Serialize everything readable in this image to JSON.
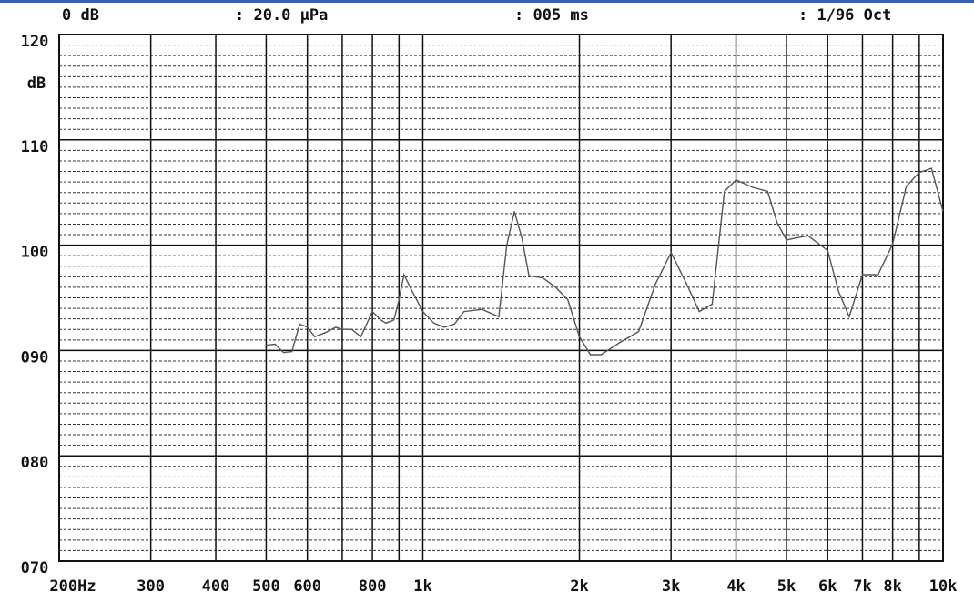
{
  "chart_data": {
    "type": "line",
    "header": [
      "0 dB",
      ": 20.0 μPa",
      ": 005 ms",
      ": 1/96  Oct"
    ],
    "y_label": "dB",
    "x_log": true,
    "grid": true,
    "minor_grid_step": 1,
    "xlim": [
      200,
      10000
    ],
    "ylim": [
      70,
      120
    ],
    "xticks": [
      {
        "value": 200,
        "label": "200Hz"
      },
      300,
      400,
      500,
      600,
      {
        "value": 700,
        "label": null
      },
      800,
      {
        "value": 900,
        "label": null
      },
      {
        "value": 1000,
        "label": "1k"
      },
      {
        "value": 2000,
        "label": "2k"
      },
      {
        "value": 3000,
        "label": "3k"
      },
      {
        "value": 4000,
        "label": "4k"
      },
      {
        "value": 5000,
        "label": "5k"
      },
      {
        "value": 6000,
        "label": "6k"
      },
      {
        "value": 7000,
        "label": "7k"
      },
      {
        "value": 8000,
        "label": "8k"
      },
      {
        "value": 9000,
        "label": null
      },
      {
        "value": 10000,
        "label": "10k"
      }
    ],
    "yticks": [
      {
        "value": 70,
        "label": "070"
      },
      {
        "value": 80,
        "label": "080"
      },
      {
        "value": 90,
        "label": "090"
      },
      100,
      110,
      120
    ],
    "x": [
      500,
      520,
      540,
      560,
      580,
      600,
      620,
      650,
      680,
      700,
      730,
      760,
      800,
      830,
      850,
      880,
      900,
      920,
      950,
      1000,
      1050,
      1100,
      1150,
      1200,
      1300,
      1400,
      1450,
      1500,
      1550,
      1600,
      1700,
      1800,
      1900,
      2000,
      2100,
      2200,
      2400,
      2600,
      2800,
      3000,
      3200,
      3400,
      3600,
      3800,
      4000,
      4300,
      4600,
      4800,
      5000,
      5500,
      6000,
      6300,
      6600,
      7000,
      7500,
      8000,
      8500,
      9000,
      9500,
      10000
    ],
    "series": [
      {
        "color": "#555555",
        "values": [
          90.5,
          90.6,
          89.8,
          89.9,
          92.5,
          92.2,
          91.3,
          91.7,
          92.2,
          92.0,
          92.0,
          91.3,
          93.7,
          92.9,
          92.6,
          92.9,
          94.8,
          97.2,
          95.8,
          93.7,
          92.6,
          92.2,
          92.5,
          93.7,
          93.9,
          93.2,
          100.0,
          103.2,
          100.7,
          97.1,
          96.9,
          96.0,
          94.8,
          91.3,
          89.6,
          89.6,
          90.8,
          91.8,
          96.3,
          99.3,
          96.5,
          93.7,
          94.4,
          105.1,
          106.2,
          105.5,
          105.1,
          102.1,
          100.5,
          100.9,
          99.5,
          95.6,
          93.2,
          97.2,
          97.2,
          100.1,
          105.6,
          106.9,
          107.3,
          103.2
        ]
      }
    ]
  }
}
